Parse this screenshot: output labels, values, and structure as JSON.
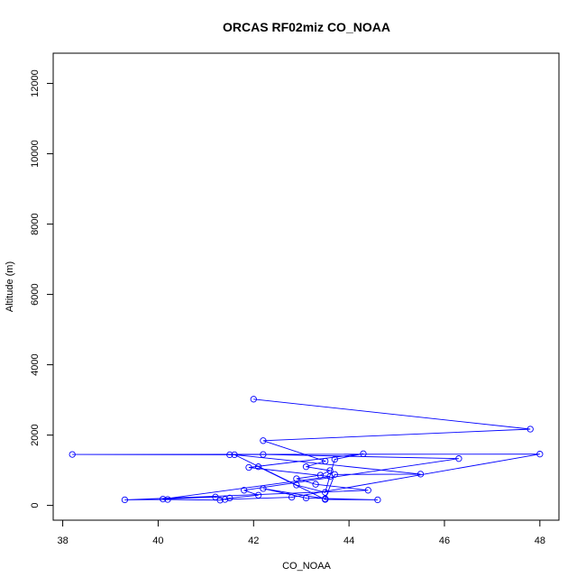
{
  "chart_data": {
    "type": "line",
    "title": "ORCAS RF02miz CO_NOAA",
    "xlabel": "CO_NOAA",
    "ylabel": "Altitude (m)",
    "xlim": [
      37.8,
      48.4
    ],
    "ylim": [
      -420,
      12860
    ],
    "xticks": [
      38,
      40,
      42,
      44,
      46,
      48
    ],
    "yticks": [
      0,
      2000,
      4000,
      6000,
      8000,
      10000,
      12000
    ],
    "grid": false,
    "legend": "none",
    "series_color": "#0000ff",
    "x": [
      42.0,
      47.8,
      42.2,
      43.5,
      43.1,
      43.6,
      43.4,
      42.9,
      43.3,
      44.4,
      39.3,
      40.2,
      41.3,
      41.5,
      42.1,
      41.8,
      46.3,
      42.2,
      41.5,
      38.2,
      48.0,
      42.8,
      41.4,
      41.2,
      40.1,
      43.6,
      41.9,
      44.3,
      43.7,
      43.5,
      42.9,
      41.6,
      45.5,
      43.7,
      43.5,
      42.2,
      43.1,
      44.6,
      43.5,
      42.1
    ],
    "y": [
      3020,
      2170,
      1840,
      1260,
      1100,
      990,
      860,
      760,
      600,
      430,
      160,
      170,
      150,
      210,
      290,
      430,
      1330,
      1450,
      1440,
      1450,
      1460,
      230,
      170,
      240,
      180,
      820,
      1080,
      1470,
      1310,
      370,
      580,
      1440,
      890,
      880,
      190,
      480,
      210,
      160,
      170,
      1100
    ]
  }
}
